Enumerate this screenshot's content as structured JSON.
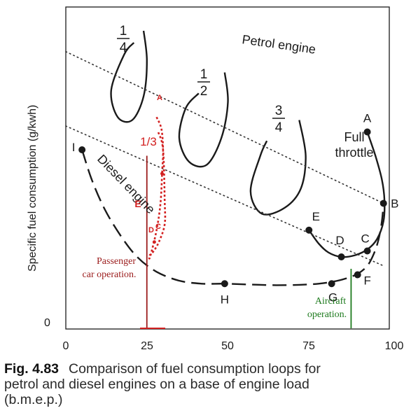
{
  "chart_data": {
    "type": "line",
    "ylabel": "Specific fuel consumption (g/kwh)",
    "xlabel": "",
    "x_ticks": [
      "0",
      "25",
      "50",
      "75",
      "100"
    ],
    "y_ticks": [
      "0"
    ],
    "xlim": [
      0,
      100
    ],
    "ylim": [
      0,
      100
    ],
    "grid": false,
    "labels": {
      "petrol": "Petrol engine",
      "diesel": "Diesel engine",
      "full_line1": "Full",
      "full_line2": "throttle",
      "one": "1",
      "q4": "4",
      "two": "2",
      "three": "3",
      "third": "1/3",
      "passenger_line1": "Passenger",
      "passenger_line2": "car operation.",
      "aircraft_line1": "Aircraft",
      "aircraft_line2": "operation."
    },
    "points": [
      {
        "name": "A",
        "x": 93,
        "y": 66
      },
      {
        "name": "B",
        "x": 98,
        "y": 42
      },
      {
        "name": "C",
        "x": 93,
        "y": 26
      },
      {
        "name": "D",
        "x": 85,
        "y": 24
      },
      {
        "name": "E",
        "x": 75,
        "y": 33
      },
      {
        "name": "F",
        "x": 90,
        "y": 18
      },
      {
        "name": "G",
        "x": 82,
        "y": 15
      },
      {
        "name": "H",
        "x": 49,
        "y": 15
      },
      {
        "name": "I",
        "x": 5,
        "y": 60
      }
    ],
    "red_letters": [
      "A",
      "E",
      "D",
      "C"
    ],
    "series": [
      {
        "name": "Diesel engine",
        "style": "dashed",
        "x": [
          5,
          8,
          12,
          17,
          22,
          28,
          35,
          42,
          49,
          57,
          65,
          72,
          78,
          82,
          86,
          90,
          93,
          95,
          96.5,
          97.5,
          98
        ],
        "y": [
          60,
          50,
          40,
          31,
          24,
          19,
          16,
          15,
          15,
          14.7,
          14.5,
          14.6,
          15,
          15.6,
          16.6,
          18.3,
          21,
          25,
          30,
          36,
          42
        ]
      },
      {
        "name": "Full throttle",
        "style": "solid",
        "x": [
          93,
          95.5,
          97.5,
          98.3,
          98,
          96,
          93,
          89,
          85,
          81,
          78,
          75
        ],
        "y": [
          66,
          58,
          50,
          43,
          36,
          30,
          26.5,
          24.5,
          24,
          25.5,
          28.5,
          33
        ]
      },
      {
        "name": "1/4",
        "style": "solid",
        "x": [
          24,
          25,
          24,
          20.5,
          16,
          14,
          18,
          21
        ],
        "y": [
          100,
          90,
          78,
          70,
          71,
          80,
          92,
          96
        ]
      },
      {
        "name": "1/2",
        "style": "solid",
        "x": [
          49,
          50,
          48,
          43.5,
          38,
          35,
          37,
          41
        ],
        "y": [
          86,
          76,
          64,
          55,
          56,
          64,
          74,
          79
        ]
      },
      {
        "name": "3/4",
        "style": "solid",
        "x": [
          72,
          74,
          72.5,
          67.5,
          60.5,
          57,
          60,
          62
        ],
        "y": [
          70,
          58,
          47,
          40.5,
          38.5,
          46,
          58,
          63
        ]
      },
      {
        "name": "Petrol guide",
        "style": "dotted",
        "x": [
          0,
          98
        ],
        "y": [
          93,
          42
        ]
      },
      {
        "name": "Diesel guide",
        "style": "dotted",
        "x": [
          0,
          98
        ],
        "y": [
          68,
          21
        ]
      }
    ],
    "annotations": [
      {
        "name": "Passenger car operation",
        "color": "#9b1b1b",
        "x": 25
      },
      {
        "name": "Aircraft operation",
        "color": "#1d7a1d",
        "x": 88
      }
    ],
    "red_loop": {
      "x": [
        28,
        29.5,
        30,
        29.7,
        29.2,
        28,
        26,
        25.8,
        26.8,
        28.7,
        30.5,
        30.5,
        30,
        28.5
      ],
      "y": [
        71,
        67,
        60,
        52,
        42,
        33,
        24,
        24.5,
        25.5,
        29,
        35,
        43,
        60,
        66
      ]
    },
    "colors": {
      "ink": "#1a1a1a",
      "red": "#d32121",
      "dark_red": "#9b1b1b",
      "green": "#1d7a1d"
    }
  },
  "caption": {
    "fig": "Fig. 4.83",
    "line1": "Comparison of fuel consumption loops for",
    "line2": "petrol and diesel engines on a base of engine load",
    "line3": "(b.m.e.p.)"
  }
}
